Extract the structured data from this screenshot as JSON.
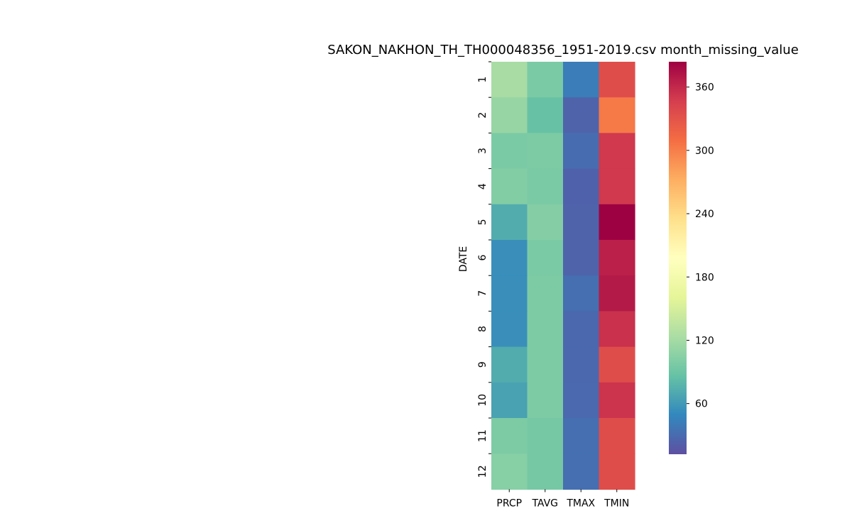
{
  "chart_data": {
    "type": "heatmap",
    "title": "SAKON_NAKHON_TH_TH000048356_1951-2019.csv month_missing_value",
    "xlabel": "",
    "ylabel": "DATE",
    "columns": [
      "PRCP",
      "TAVG",
      "TMAX",
      "TMIN"
    ],
    "rows": [
      "1",
      "2",
      "3",
      "4",
      "5",
      "6",
      "7",
      "8",
      "9",
      "10",
      "11",
      "12"
    ],
    "values": [
      [
        122,
        97,
        42,
        335
      ],
      [
        113,
        87,
        25,
        303
      ],
      [
        97,
        99,
        31,
        350
      ],
      [
        102,
        97,
        24,
        350
      ],
      [
        72,
        103,
        25,
        384
      ],
      [
        54,
        97,
        25,
        365
      ],
      [
        54,
        99,
        33,
        369
      ],
      [
        54,
        99,
        28,
        355
      ],
      [
        72,
        99,
        28,
        335
      ],
      [
        66,
        99,
        29,
        353
      ],
      [
        99,
        95,
        33,
        335
      ],
      [
        104,
        95,
        33,
        335
      ]
    ],
    "colormap": "Spectral_r",
    "colorbar": {
      "min": 12,
      "max": 384,
      "ticks": [
        60,
        120,
        180,
        240,
        300,
        360
      ]
    },
    "grid": false,
    "legend": "colorbar-right"
  }
}
